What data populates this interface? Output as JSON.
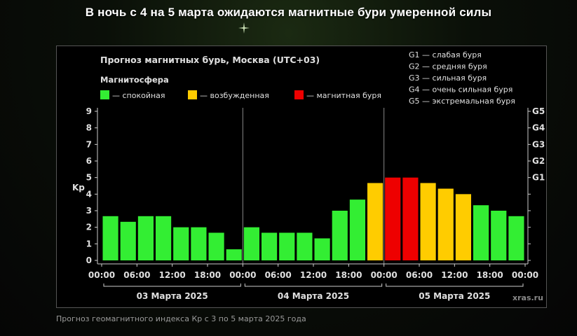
{
  "headline": "В ночь с 4 на 5 марта ожидаются магнитные бури умеренной силы",
  "caption": "Прогноз геомагнитного индекса Кр с 3 по 5 марта 2025 года",
  "colors": {
    "calm": "#33ee33",
    "excited": "#ffcc00",
    "storm": "#ee0000"
  },
  "chart_data": {
    "type": "bar",
    "title": "Прогноз магнитных бурь, Москва (UTC+03)",
    "legend_title": "Магнитосфера",
    "legend": [
      {
        "key": "calm",
        "label": "— спокойная"
      },
      {
        "key": "excited",
        "label": "— возбужденная"
      },
      {
        "key": "storm",
        "label": "— магнитная буря"
      }
    ],
    "storm_scale": [
      "G1 — слабая буря",
      "G2 — средняя буря",
      "G3 — сильная буря",
      "G4 — очень сильная буря",
      "G5 — экстремальная буря"
    ],
    "ylabel": "Kp",
    "ylim": [
      0,
      9
    ],
    "yticks": [
      "0",
      "1",
      "2",
      "3",
      "4",
      "5",
      "6",
      "7",
      "8",
      "9"
    ],
    "right_ticks": [
      {
        "value": 5,
        "label": "G1"
      },
      {
        "value": 6,
        "label": "G2"
      },
      {
        "value": 7,
        "label": "G3"
      },
      {
        "value": 8,
        "label": "G4"
      },
      {
        "value": 9,
        "label": "G5"
      }
    ],
    "x_tick_labels": [
      "00:00",
      "06:00",
      "12:00",
      "18:00",
      "00:00",
      "06:00",
      "12:00",
      "18:00",
      "00:00",
      "06:00",
      "12:00",
      "18:00",
      "00:00"
    ],
    "days": [
      "03 Марта 2025",
      "04 Марта 2025",
      "05 Марта 2025"
    ],
    "values": [
      2.67,
      2.33,
      2.67,
      2.67,
      2.0,
      2.0,
      1.67,
      0.67,
      2.0,
      1.67,
      1.67,
      1.67,
      1.33,
      3.0,
      3.67,
      4.67,
      5.0,
      5.0,
      4.67,
      4.33,
      4.0,
      3.33,
      3.0,
      2.67
    ],
    "categories_note": "3-hour intervals",
    "watermark": "xras.ru"
  }
}
